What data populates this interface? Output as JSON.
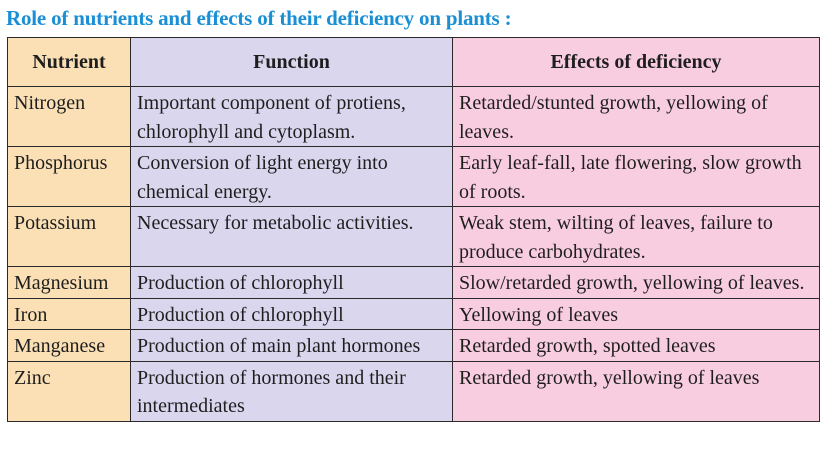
{
  "title": "Role of nutrients and effects of their deficiency on plants :",
  "table": {
    "headers": [
      "Nutrient",
      "Function",
      "Effects of deficiency"
    ],
    "rows": [
      {
        "nutrient": "Nitrogen",
        "function": "Important component of protiens, chlorophyll and cytoplasm.",
        "effects": "Retarded/stunted growth, yellowing  of leaves."
      },
      {
        "nutrient": "Phosphorus",
        "function": "Conversion of light energy into chemical energy.",
        "effects": "Early leaf-fall, late flowering, slow growth of roots."
      },
      {
        "nutrient": "Potassium",
        "function": "Necessary for metabolic activities.",
        "effects": "Weak stem, wilting of leaves, failure to produce carbohydrates."
      },
      {
        "nutrient": "Magnesium",
        "function": "Production of chlorophyll",
        "effects": "Slow/retarded growth, yellowing of leaves."
      },
      {
        "nutrient": "Iron",
        "function": "Production of chlorophyll",
        "effects": "Yellowing of leaves"
      },
      {
        "nutrient": "Manganese",
        "function": "Production of main plant hormones",
        "effects": "Retarded growth, spotted leaves"
      },
      {
        "nutrient": "Zinc",
        "function": "Production of hormones and their intermediates",
        "effects": "Retarded growth, yellowing of leaves"
      }
    ]
  },
  "colors": {
    "title": "#1a8fd6",
    "nutrient_column": "#fbe0b5",
    "function_column": "#d9d6ee",
    "effects_column": "#f9cde0",
    "border": "#2a2a2a"
  }
}
